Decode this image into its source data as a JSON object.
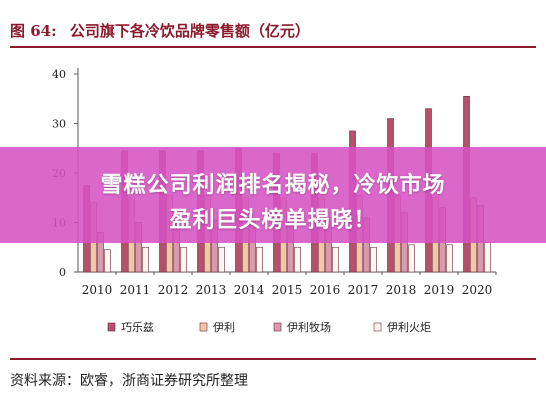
{
  "figure": {
    "number": "图 64:",
    "title": "公司旗下各冷饮品牌零售额（亿元）"
  },
  "source": "资料来源：欧睿，浙商证券研究所整理",
  "banner": {
    "line1": "雪糕公司利润排名揭秘，冷饮市场",
    "line2": "盈利巨头榜单揭晓！",
    "color": "#d652c4"
  },
  "chart_data": {
    "type": "bar",
    "title": "公司旗下各冷饮品牌零售额（亿元）",
    "categories": [
      "2010",
      "2011",
      "2012",
      "2013",
      "2014",
      "2015",
      "2016",
      "2017",
      "2018",
      "2019",
      "2020"
    ],
    "ylim": [
      0,
      40
    ],
    "yticks": [
      0,
      10,
      20,
      30,
      40
    ],
    "grid": false,
    "legend_position": "bottom",
    "series": [
      {
        "name": "巧乐兹",
        "color": "#b5516a",
        "values": [
          17.5,
          24.5,
          24.5,
          24.5,
          25.0,
          24.0,
          24.0,
          28.5,
          31.0,
          33.0,
          35.5
        ]
      },
      {
        "name": "伊利",
        "color": "#f3c6a4",
        "values": [
          14.0,
          15.0,
          15.5,
          15.5,
          15.0,
          15.0,
          15.0,
          15.5,
          15.5,
          15.0,
          15.0
        ]
      },
      {
        "name": "伊利牧场",
        "color": "#d99aad",
        "values": [
          8.0,
          10.0,
          10.5,
          10.5,
          10.5,
          10.5,
          11.0,
          11.0,
          12.0,
          13.0,
          13.5
        ]
      },
      {
        "name": "伊利火炬",
        "color": "#fdf6ef",
        "values": [
          4.5,
          5.0,
          5.0,
          5.0,
          5.0,
          5.0,
          5.0,
          5.0,
          5.5,
          5.5,
          6.0
        ]
      }
    ]
  }
}
